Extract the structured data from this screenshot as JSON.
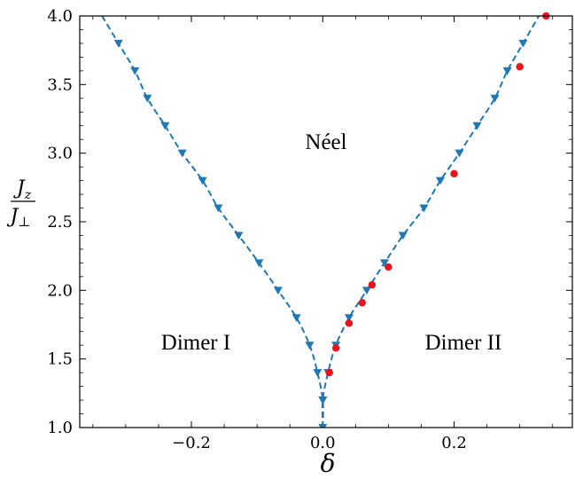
{
  "chart_data": {
    "type": "scatter",
    "xlabel": "δ",
    "ylabel": {
      "numerator": "J",
      "numerator_sub": "z",
      "denominator": "J",
      "denominator_sub": "⊥"
    },
    "xlim": [
      -0.37,
      0.38
    ],
    "ylim": [
      1.0,
      4.0
    ],
    "xticks": [
      -0.2,
      0.0,
      0.2
    ],
    "xtick_labels": [
      "−0.2",
      "0.0",
      "0.2"
    ],
    "yticks": [
      1.0,
      1.5,
      2.0,
      2.5,
      3.0,
      3.5,
      4.0
    ],
    "ytick_labels": [
      "1.0",
      "1.5",
      "2.0",
      "2.5",
      "3.0",
      "3.5",
      "4.0"
    ],
    "grid": false,
    "legend": "none",
    "colors": {
      "boundary": "#1f77b4",
      "red_points": "#e8141d"
    },
    "region_labels": [
      "Néel",
      "Dimer I",
      "Dimer II"
    ],
    "series": [
      {
        "marker": "triangle-down",
        "color": "#1f77b4",
        "line": "dashed",
        "x": [
          0.0,
          0.0,
          -0.008,
          -0.02,
          -0.04,
          -0.068,
          -0.097,
          -0.128,
          -0.159,
          -0.183,
          -0.214,
          -0.24,
          -0.267,
          -0.286,
          -0.311
        ],
        "y": [
          1.0,
          1.2,
          1.4,
          1.6,
          1.8,
          2.0,
          2.2,
          2.4,
          2.6,
          2.8,
          3.0,
          3.2,
          3.4,
          3.6,
          3.8
        ]
      },
      {
        "marker": "triangle-down",
        "color": "#1f77b4",
        "line": "dashed",
        "x": [
          0.0,
          0.008,
          0.02,
          0.04,
          0.067,
          0.094,
          0.122,
          0.154,
          0.179,
          0.208,
          0.235,
          0.262,
          0.281,
          0.305
        ],
        "y": [
          1.2,
          1.4,
          1.6,
          1.8,
          2.0,
          2.2,
          2.4,
          2.6,
          2.8,
          3.0,
          3.2,
          3.4,
          3.6,
          3.8
        ]
      },
      {
        "marker": "circle",
        "color": "#e8141d",
        "line": "none",
        "x": [
          0.01,
          0.02,
          0.04,
          0.06,
          0.075,
          0.1,
          0.2,
          0.3,
          0.34
        ],
        "y": [
          1.4,
          1.58,
          1.76,
          1.91,
          2.04,
          2.17,
          2.85,
          3.63,
          4.0
        ]
      }
    ]
  }
}
